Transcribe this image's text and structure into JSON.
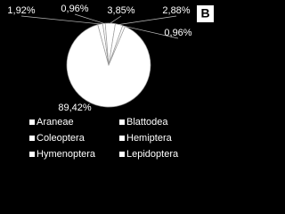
{
  "chart_data": {
    "type": "pie",
    "title": "B",
    "categories": [
      "Araneae",
      "Blattodea",
      "Coleoptera",
      "Hemiptera",
      "Hymenoptera",
      "Lepidoptera"
    ],
    "values": [
      89.42,
      1.92,
      0.96,
      3.85,
      2.88,
      0.96
    ],
    "value_labels": [
      "89,42%",
      "1,92%",
      "0,96%",
      "3,85%",
      "2,88%",
      "0,96%"
    ],
    "color": "#ffffff",
    "legend": "bottom"
  }
}
